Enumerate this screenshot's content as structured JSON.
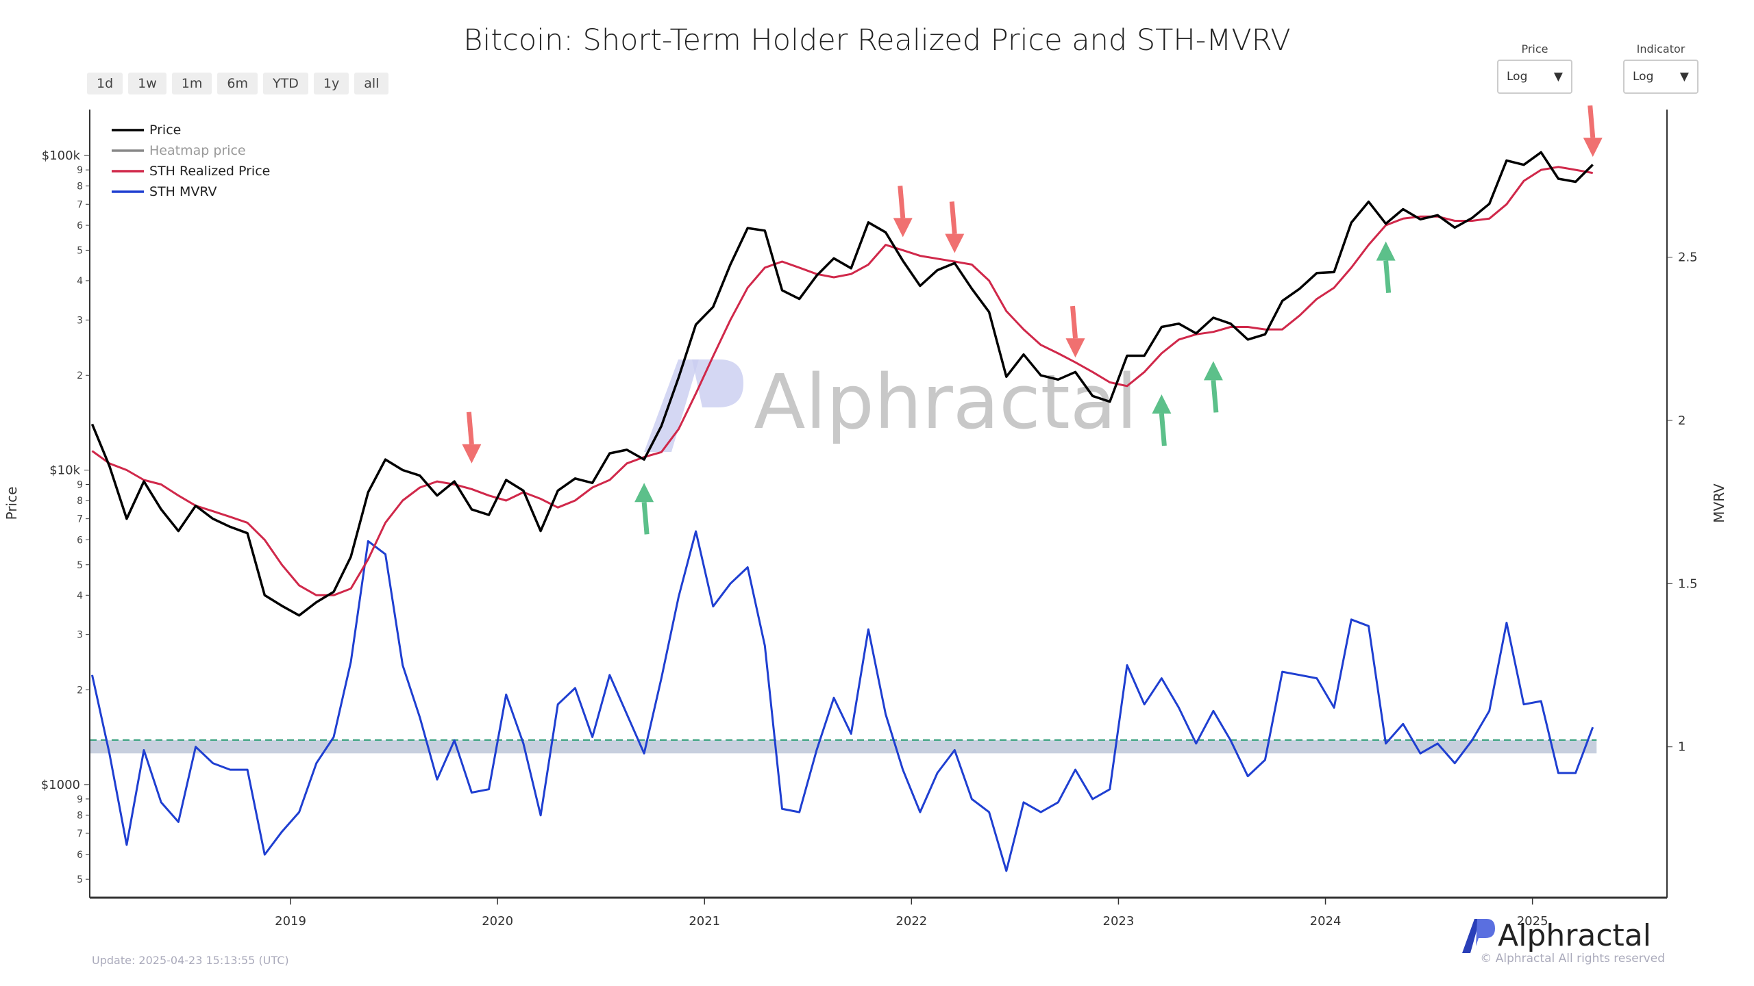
{
  "title": "Bitcoin: Short-Term Holder Realized Price and STH-MVRV",
  "range_buttons": [
    "1d",
    "1w",
    "1m",
    "6m",
    "YTD",
    "1y",
    "all"
  ],
  "selectors": [
    {
      "label": "Price",
      "value": "Log"
    },
    {
      "label": "Indicator",
      "value": "Log"
    }
  ],
  "footer": {
    "update": "Update: 2025-04-23 15:13:55 (UTC)",
    "copyright": "© Alphractal All rights reserved",
    "brand": "Alphractal"
  },
  "watermark": "Alphractal",
  "colors": {
    "price": "#000000",
    "heatmap": "#888888",
    "sth_realized": "#d0284a",
    "mvrv": "#1f3fd1",
    "band": "#b9c3d6",
    "dashed": "#4aa88a",
    "sell_arrow": "#f07070",
    "buy_arrow": "#5cc08a"
  },
  "chart_data": {
    "type": "line",
    "title": "Bitcoin: Short-Term Holder Realized Price and STH-MVRV",
    "ylabel": "Price",
    "y2label": "MVRV",
    "yscale": "log",
    "ylim": [
      437,
      140000
    ],
    "y2lim": [
      0.538,
      2.952
    ],
    "xlim": [
      "2018-01",
      "2025-08"
    ],
    "x_ticks": [
      "2019",
      "2020",
      "2021",
      "2022",
      "2023",
      "2024",
      "2025"
    ],
    "y_ticks_major": [
      {
        "v": 100000,
        "label": "$100k"
      },
      {
        "v": 10000,
        "label": "$10k"
      },
      {
        "v": 1000,
        "label": "$1000"
      }
    ],
    "y_ticks_minor_digits": [
      "9",
      "8",
      "7",
      "6",
      "5",
      "4",
      "3",
      "2"
    ],
    "y2_ticks": [
      "1",
      "1.5",
      "2",
      "2.5"
    ],
    "legend": [
      "Price",
      "Heatmap price",
      "STH Realized Price",
      "STH MVRV"
    ],
    "legend_position": "top-left",
    "reference_line": 1,
    "reference_band": [
      0.98,
      1.02
    ],
    "dates": [
      "2018-01",
      "2018-02",
      "2018-03",
      "2018-04",
      "2018-05",
      "2018-06",
      "2018-07",
      "2018-08",
      "2018-09",
      "2018-10",
      "2018-11",
      "2018-12",
      "2019-01",
      "2019-02",
      "2019-03",
      "2019-04",
      "2019-05",
      "2019-06",
      "2019-07",
      "2019-08",
      "2019-09",
      "2019-10",
      "2019-11",
      "2019-12",
      "2020-01",
      "2020-02",
      "2020-03",
      "2020-04",
      "2020-05",
      "2020-06",
      "2020-07",
      "2020-08",
      "2020-09",
      "2020-10",
      "2020-11",
      "2020-12",
      "2021-01",
      "2021-02",
      "2021-03",
      "2021-04",
      "2021-05",
      "2021-06",
      "2021-07",
      "2021-08",
      "2021-09",
      "2021-10",
      "2021-11",
      "2021-12",
      "2022-01",
      "2022-02",
      "2022-03",
      "2022-04",
      "2022-05",
      "2022-06",
      "2022-07",
      "2022-08",
      "2022-09",
      "2022-10",
      "2022-11",
      "2022-12",
      "2023-01",
      "2023-02",
      "2023-03",
      "2023-04",
      "2023-05",
      "2023-06",
      "2023-07",
      "2023-08",
      "2023-09",
      "2023-10",
      "2023-11",
      "2023-12",
      "2024-01",
      "2024-02",
      "2024-03",
      "2024-04",
      "2024-05",
      "2024-06",
      "2024-07",
      "2024-08",
      "2024-09",
      "2024-10",
      "2024-11",
      "2024-12",
      "2025-01",
      "2025-02",
      "2025-03",
      "2025-04"
    ],
    "series": [
      {
        "name": "Price",
        "axis": "left",
        "values": [
          14000,
          10300,
          7000,
          9200,
          7500,
          6400,
          7700,
          7000,
          6600,
          6300,
          4000,
          3700,
          3450,
          3800,
          4100,
          5300,
          8500,
          10800,
          10000,
          9600,
          8300,
          9200,
          7500,
          7200,
          9300,
          8600,
          6400,
          8600,
          9400,
          9100,
          11300,
          11600,
          10800,
          13800,
          19700,
          29000,
          33000,
          45000,
          58800,
          57700,
          37300,
          35000,
          41500,
          47100,
          43800,
          61300,
          57000,
          46300,
          38500,
          43200,
          45500,
          37700,
          31800,
          19800,
          23300,
          20000,
          19400,
          20500,
          17200,
          16500,
          23100,
          23100,
          28500,
          29200,
          27200,
          30500,
          29200,
          26000,
          27000,
          34500,
          37700,
          42300,
          42600,
          61200,
          71300,
          60700,
          67500,
          62700,
          64600,
          59000,
          63300,
          70200,
          96400,
          93400,
          102400,
          84400,
          82500,
          93500
        ]
      },
      {
        "name": "STH Realized Price",
        "axis": "left",
        "values": [
          11500,
          10500,
          10000,
          9300,
          9000,
          8300,
          7700,
          7400,
          7100,
          6800,
          6000,
          5000,
          4300,
          4000,
          4000,
          4200,
          5200,
          6800,
          8000,
          8800,
          9200,
          9000,
          8700,
          8300,
          8000,
          8500,
          8100,
          7600,
          8000,
          8800,
          9300,
          10500,
          11000,
          11400,
          13500,
          17500,
          23000,
          30000,
          38000,
          44000,
          46000,
          44000,
          42000,
          41000,
          42000,
          45000,
          52000,
          50000,
          48000,
          47000,
          46000,
          45000,
          40000,
          32000,
          28000,
          25000,
          23500,
          22000,
          20500,
          19000,
          18500,
          20500,
          23500,
          26000,
          27000,
          27500,
          28500,
          28500,
          28000,
          28000,
          31000,
          35000,
          38000,
          44000,
          52000,
          60000,
          63000,
          64000,
          64000,
          62000,
          62000,
          63000,
          70000,
          83000,
          90000,
          92000,
          90000,
          88000
        ]
      },
      {
        "name": "STH MVRV",
        "axis": "right",
        "values": [
          1.22,
          0.98,
          0.7,
          0.99,
          0.83,
          0.77,
          1.0,
          0.95,
          0.93,
          0.93,
          0.67,
          0.74,
          0.8,
          0.95,
          1.03,
          1.26,
          1.63,
          1.59,
          1.25,
          1.09,
          0.9,
          1.02,
          0.86,
          0.87,
          1.16,
          1.01,
          0.79,
          1.13,
          1.18,
          1.03,
          1.22,
          1.1,
          0.98,
          1.21,
          1.46,
          1.66,
          1.43,
          1.5,
          1.55,
          1.31,
          0.81,
          0.8,
          0.99,
          1.15,
          1.04,
          1.36,
          1.1,
          0.93,
          0.8,
          0.92,
          0.99,
          0.84,
          0.8,
          0.62,
          0.83,
          0.8,
          0.83,
          0.93,
          0.84,
          0.87,
          1.25,
          1.13,
          1.21,
          1.12,
          1.01,
          1.11,
          1.02,
          0.91,
          0.96,
          1.23,
          1.22,
          1.21,
          1.12,
          1.39,
          1.37,
          1.01,
          1.07,
          0.98,
          1.01,
          0.95,
          1.02,
          1.11,
          1.38,
          1.13,
          1.14,
          0.92,
          0.92,
          1.06
        ]
      }
    ],
    "annotations": [
      {
        "type": "sell",
        "date": "2019-11",
        "price": 10500
      },
      {
        "type": "sell",
        "date": "2021-12",
        "price": 55000
      },
      {
        "type": "sell",
        "date": "2022-03",
        "price": 49000
      },
      {
        "type": "sell",
        "date": "2022-10",
        "price": 22800
      },
      {
        "type": "sell",
        "date": "2025-04",
        "price": 99000
      },
      {
        "type": "buy",
        "date": "2020-09",
        "price": 9100
      },
      {
        "type": "buy",
        "date": "2023-03",
        "price": 17400
      },
      {
        "type": "buy",
        "date": "2023-06",
        "price": 22200
      },
      {
        "type": "buy",
        "date": "2024-04",
        "price": 53300
      }
    ]
  }
}
